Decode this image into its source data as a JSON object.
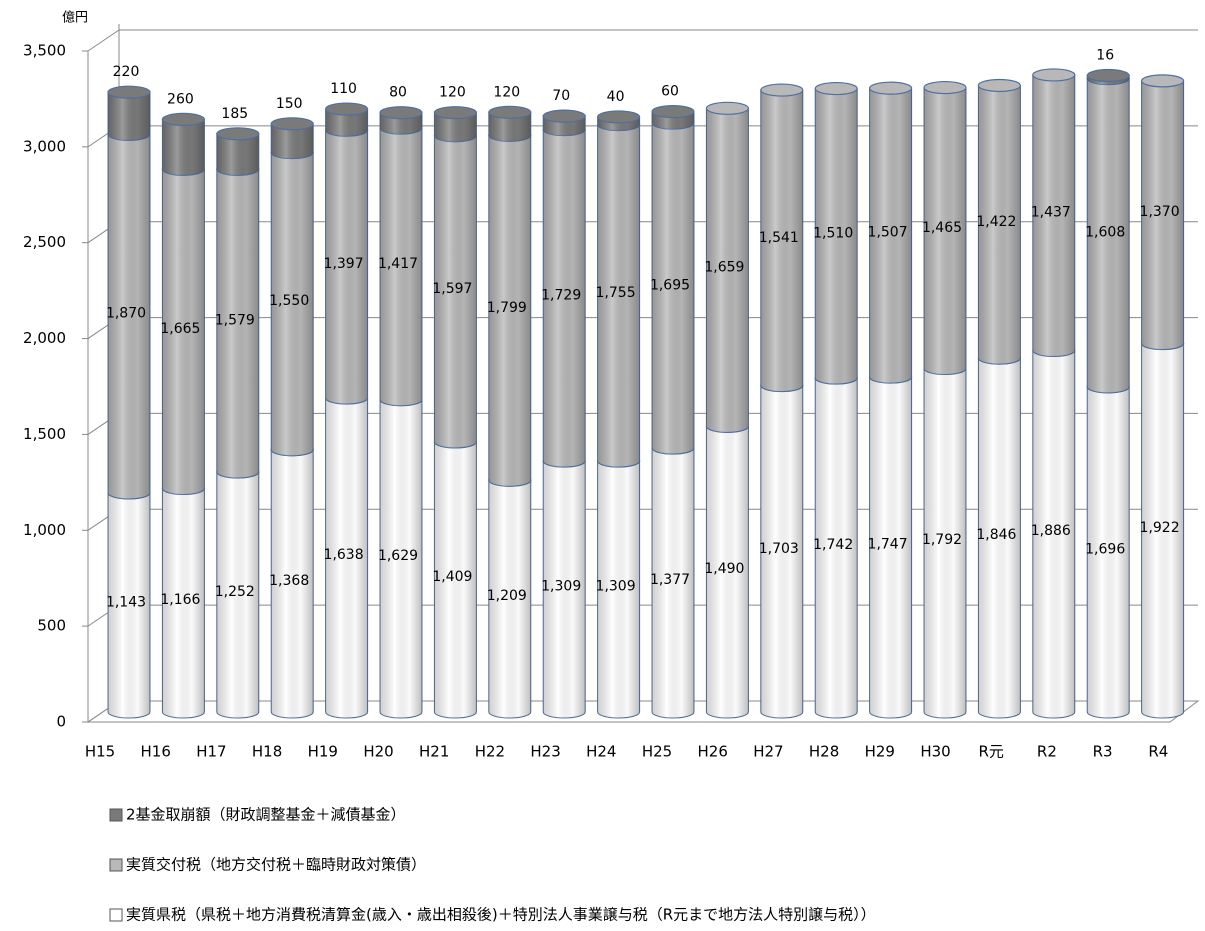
{
  "chart_data": {
    "type": "stacked_cylinder_bar",
    "y_label": "億円",
    "categories": [
      "H15",
      "H16",
      "H17",
      "H18",
      "H19",
      "H20",
      "H21",
      "H22",
      "H23",
      "H24",
      "H25",
      "H26",
      "H27",
      "H28",
      "H29",
      "H30",
      "R元",
      "R2",
      "R3",
      "R4"
    ],
    "series": [
      {
        "name": "実質県税（県税＋地方消費税清算金(歳入・歳出相殺後)＋特別法人事業譲与税（R元まで地方法人特別譲与税））",
        "color": "#ffffff",
        "values": [
          1143,
          1166,
          1252,
          1368,
          1638,
          1629,
          1409,
          1209,
          1309,
          1309,
          1377,
          1490,
          1703,
          1742,
          1747,
          1792,
          1846,
          1886,
          1696,
          1922
        ],
        "value_labels": [
          "1,143",
          "1,166",
          "1,252",
          "1,368",
          "1,638",
          "1,629",
          "1,409",
          "1,209",
          "1,309",
          "1,309",
          "1,377",
          "1,490",
          "1,703",
          "1,742",
          "1,747",
          "1,792",
          "1,846",
          "1,886",
          "1,696",
          "1,922"
        ]
      },
      {
        "name": "実質交付税（地方交付税＋臨時財政対策債）",
        "color": "#b8b8b8",
        "values": [
          1870,
          1665,
          1579,
          1550,
          1397,
          1417,
          1597,
          1799,
          1729,
          1755,
          1695,
          1659,
          1541,
          1510,
          1507,
          1465,
          1422,
          1437,
          1608,
          1370
        ],
        "value_labels": [
          "1,870",
          "1,665",
          "1,579",
          "1,550",
          "1,397",
          "1,417",
          "1,597",
          "1,799",
          "1,729",
          "1,755",
          "1,695",
          "1,659",
          "1,541",
          "1,510",
          "1,507",
          "1,465",
          "1,422",
          "1,437",
          "1,608",
          "1,370"
        ]
      },
      {
        "name": "2基金取崩額（財政調整基金＋減債基金）",
        "color": "#7a7a7a",
        "values": [
          220,
          260,
          185,
          150,
          110,
          80,
          120,
          120,
          70,
          40,
          60,
          null,
          null,
          null,
          null,
          null,
          null,
          null,
          16,
          null
        ]
      }
    ],
    "ylim": [
      0,
      3500
    ],
    "yticks": [
      0,
      500,
      {
        "value": 1000,
        "label": "1,000"
      },
      {
        "value": 1500,
        "label": "1,500"
      },
      {
        "value": 2000,
        "label": "2,000"
      },
      {
        "value": 2500,
        "label": "2,500"
      },
      {
        "value": 3000,
        "label": "3,000"
      },
      {
        "value": 3500,
        "label": "3,500"
      }
    ],
    "grid": true
  }
}
